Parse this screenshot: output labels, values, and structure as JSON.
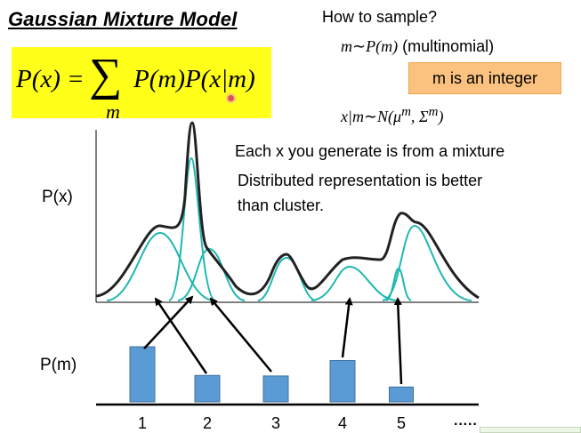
{
  "slide": {
    "title": "Gaussian Mixture Model",
    "formula": {
      "lhs": "P(x) = ",
      "sum": "∑",
      "sub": "m",
      "rhs": "P(m)P(x|m)"
    },
    "how_to_sample": "How to sample?",
    "sample_m_math": "m∼P(m)",
    "sample_m_note": " (multinomial)",
    "m_integer_note": "m is an integer",
    "sample_x_math": "x|m∼N(μ^m, Σ^m)",
    "note_line1": "Each x you generate is from a mixture",
    "note_line2": "Distributed representation is better",
    "note_line3": "than cluster.",
    "label_px": "P(x)",
    "label_pm": "P(m)",
    "category_labels": [
      "1",
      "2",
      "3",
      "4",
      "5"
    ],
    "ellipsis": "·····"
  },
  "colors": {
    "highlight": "#ffff1a",
    "note_box": "#fbc27f",
    "gaussian": "#1fb8b0",
    "mixture": "#222222",
    "bar": "#5b9bd5"
  },
  "chart_data": {
    "type": "bar",
    "categories": [
      "1",
      "2",
      "3",
      "4",
      "5"
    ],
    "values": [
      1.0,
      0.48,
      0.47,
      0.75,
      0.27
    ],
    "xlabel": "",
    "ylabel": "P(m)",
    "ylim": [
      0,
      1
    ]
  }
}
